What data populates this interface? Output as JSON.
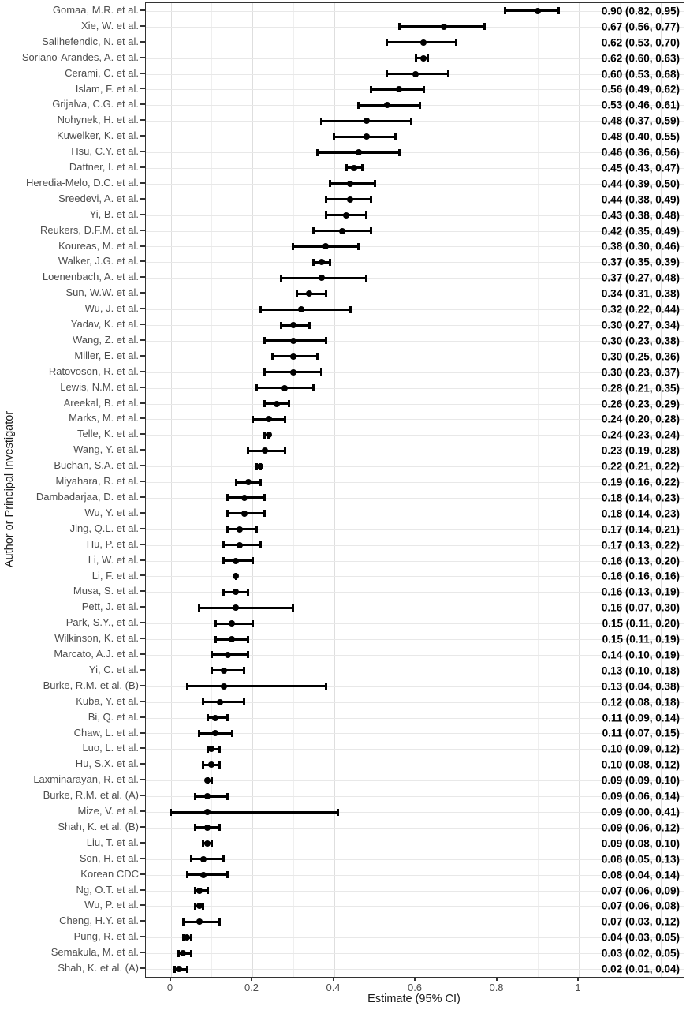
{
  "chart_data": {
    "type": "scatter",
    "subtype": "forest-plot",
    "title": "",
    "xlabel": "Estimate (95% CI)",
    "ylabel": "Author or Principal Investigator",
    "xticks": [
      0,
      0.2,
      0.4,
      0.6,
      0.8,
      1
    ],
    "xtick_labels": [
      "0",
      "0.2",
      "0.4",
      "0.6",
      "0.8",
      "1"
    ],
    "xlim": [
      -0.06,
      1.26
    ],
    "legend": "none",
    "grid": {
      "major_x_step": 0.2,
      "minor_x_step": 0.1,
      "horizontal_per_row": true
    },
    "colors": {
      "point": "#000000",
      "axis_text": "#4d4d4d",
      "estimate_text": "#000000",
      "vgrid_major": "#dedede",
      "vgrid_minor": "#efefef",
      "hgrid": "#e8e8e8",
      "panel_border": "#333333",
      "background": "#ffffff"
    },
    "studies": [
      {
        "label": "Gomaa, M.R. et al.",
        "est": 0.9,
        "lo": 0.82,
        "hi": 0.95,
        "text": "0.90 (0.82, 0.95)"
      },
      {
        "label": "Xie, W. et al.",
        "est": 0.67,
        "lo": 0.56,
        "hi": 0.77,
        "text": "0.67 (0.56, 0.77)"
      },
      {
        "label": "Salihefendic, N. et al.",
        "est": 0.62,
        "lo": 0.53,
        "hi": 0.7,
        "text": "0.62 (0.53, 0.70)"
      },
      {
        "label": "Soriano-Arandes, A. et al.",
        "est": 0.62,
        "lo": 0.6,
        "hi": 0.63,
        "text": "0.62 (0.60, 0.63)"
      },
      {
        "label": "Cerami, C. et al.",
        "est": 0.6,
        "lo": 0.53,
        "hi": 0.68,
        "text": "0.60 (0.53, 0.68)"
      },
      {
        "label": "Islam, F. et al.",
        "est": 0.56,
        "lo": 0.49,
        "hi": 0.62,
        "text": "0.56 (0.49, 0.62)"
      },
      {
        "label": "Grijalva, C.G. et al.",
        "est": 0.53,
        "lo": 0.46,
        "hi": 0.61,
        "text": "0.53 (0.46, 0.61)"
      },
      {
        "label": "Nohynek, H. et al.",
        "est": 0.48,
        "lo": 0.37,
        "hi": 0.59,
        "text": "0.48 (0.37, 0.59)"
      },
      {
        "label": "Kuwelker, K. et al.",
        "est": 0.48,
        "lo": 0.4,
        "hi": 0.55,
        "text": "0.48 (0.40, 0.55)"
      },
      {
        "label": "Hsu, C.Y. et al.",
        "est": 0.46,
        "lo": 0.36,
        "hi": 0.56,
        "text": "0.46 (0.36, 0.56)"
      },
      {
        "label": "Dattner, I. et al.",
        "est": 0.45,
        "lo": 0.43,
        "hi": 0.47,
        "text": "0.45 (0.43, 0.47)"
      },
      {
        "label": "Heredia-Melo, D.C. et al.",
        "est": 0.44,
        "lo": 0.39,
        "hi": 0.5,
        "text": "0.44 (0.39, 0.50)"
      },
      {
        "label": "Sreedevi, A. et al.",
        "est": 0.44,
        "lo": 0.38,
        "hi": 0.49,
        "text": "0.44 (0.38, 0.49)"
      },
      {
        "label": "Yi, B. et al.",
        "est": 0.43,
        "lo": 0.38,
        "hi": 0.48,
        "text": "0.43 (0.38, 0.48)"
      },
      {
        "label": "Reukers, D.F.M. et al.",
        "est": 0.42,
        "lo": 0.35,
        "hi": 0.49,
        "text": "0.42 (0.35, 0.49)"
      },
      {
        "label": "Koureas, M. et al.",
        "est": 0.38,
        "lo": 0.3,
        "hi": 0.46,
        "text": "0.38 (0.30, 0.46)"
      },
      {
        "label": "Walker, J.G. et al.",
        "est": 0.37,
        "lo": 0.35,
        "hi": 0.39,
        "text": "0.37 (0.35, 0.39)"
      },
      {
        "label": "Loenenbach, A. et al.",
        "est": 0.37,
        "lo": 0.27,
        "hi": 0.48,
        "text": "0.37 (0.27, 0.48)"
      },
      {
        "label": "Sun, W.W. et al.",
        "est": 0.34,
        "lo": 0.31,
        "hi": 0.38,
        "text": "0.34 (0.31, 0.38)"
      },
      {
        "label": "Wu, J. et al.",
        "est": 0.32,
        "lo": 0.22,
        "hi": 0.44,
        "text": "0.32 (0.22, 0.44)"
      },
      {
        "label": "Yadav, K. et al.",
        "est": 0.3,
        "lo": 0.27,
        "hi": 0.34,
        "text": "0.30 (0.27, 0.34)"
      },
      {
        "label": "Wang, Z. et al.",
        "est": 0.3,
        "lo": 0.23,
        "hi": 0.38,
        "text": "0.30 (0.23, 0.38)"
      },
      {
        "label": "Miller, E. et al.",
        "est": 0.3,
        "lo": 0.25,
        "hi": 0.36,
        "text": "0.30 (0.25, 0.36)"
      },
      {
        "label": "Ratovoson, R. et al.",
        "est": 0.3,
        "lo": 0.23,
        "hi": 0.37,
        "text": "0.30 (0.23, 0.37)"
      },
      {
        "label": "Lewis, N.M. et al.",
        "est": 0.28,
        "lo": 0.21,
        "hi": 0.35,
        "text": "0.28 (0.21, 0.35)"
      },
      {
        "label": "Areekal, B. et al.",
        "est": 0.26,
        "lo": 0.23,
        "hi": 0.29,
        "text": "0.26 (0.23, 0.29)"
      },
      {
        "label": "Marks, M. et al.",
        "est": 0.24,
        "lo": 0.2,
        "hi": 0.28,
        "text": "0.24 (0.20, 0.28)"
      },
      {
        "label": "Telle, K. et al.",
        "est": 0.24,
        "lo": 0.23,
        "hi": 0.24,
        "text": "0.24 (0.23, 0.24)"
      },
      {
        "label": "Wang, Y. et al.",
        "est": 0.23,
        "lo": 0.19,
        "hi": 0.28,
        "text": "0.23 (0.19, 0.28)"
      },
      {
        "label": "Buchan, S.A. et al.",
        "est": 0.22,
        "lo": 0.21,
        "hi": 0.22,
        "text": "0.22 (0.21, 0.22)"
      },
      {
        "label": "Miyahara, R. et al.",
        "est": 0.19,
        "lo": 0.16,
        "hi": 0.22,
        "text": "0.19 (0.16, 0.22)"
      },
      {
        "label": "Dambadarjaa, D. et al.",
        "est": 0.18,
        "lo": 0.14,
        "hi": 0.23,
        "text": "0.18 (0.14, 0.23)"
      },
      {
        "label": "Wu, Y. et al.",
        "est": 0.18,
        "lo": 0.14,
        "hi": 0.23,
        "text": "0.18 (0.14, 0.23)"
      },
      {
        "label": "Jing, Q.L. et al.",
        "est": 0.17,
        "lo": 0.14,
        "hi": 0.21,
        "text": "0.17 (0.14, 0.21)"
      },
      {
        "label": "Hu, P. et al.",
        "est": 0.17,
        "lo": 0.13,
        "hi": 0.22,
        "text": "0.17 (0.13, 0.22)"
      },
      {
        "label": "Li, W. et al.",
        "est": 0.16,
        "lo": 0.13,
        "hi": 0.2,
        "text": "0.16 (0.13, 0.20)"
      },
      {
        "label": "Li, F. et al.",
        "est": 0.16,
        "lo": 0.16,
        "hi": 0.16,
        "text": "0.16 (0.16, 0.16)"
      },
      {
        "label": "Musa, S. et al.",
        "est": 0.16,
        "lo": 0.13,
        "hi": 0.19,
        "text": "0.16 (0.13, 0.19)"
      },
      {
        "label": "Pett, J. et al.",
        "est": 0.16,
        "lo": 0.07,
        "hi": 0.3,
        "text": "0.16 (0.07, 0.30)"
      },
      {
        "label": "Park, S.Y., et al.",
        "est": 0.15,
        "lo": 0.11,
        "hi": 0.2,
        "text": "0.15 (0.11, 0.20)"
      },
      {
        "label": "Wilkinson, K. et al.",
        "est": 0.15,
        "lo": 0.11,
        "hi": 0.19,
        "text": "0.15 (0.11, 0.19)"
      },
      {
        "label": "Marcato, A.J. et al.",
        "est": 0.14,
        "lo": 0.1,
        "hi": 0.19,
        "text": "0.14 (0.10, 0.19)"
      },
      {
        "label": "Yi, C. et al.",
        "est": 0.13,
        "lo": 0.1,
        "hi": 0.18,
        "text": "0.13 (0.10, 0.18)"
      },
      {
        "label": "Burke, R.M. et al. (B)",
        "est": 0.13,
        "lo": 0.04,
        "hi": 0.38,
        "text": "0.13 (0.04, 0.38)"
      },
      {
        "label": "Kuba, Y. et al.",
        "est": 0.12,
        "lo": 0.08,
        "hi": 0.18,
        "text": "0.12 (0.08, 0.18)"
      },
      {
        "label": "Bi, Q. et al.",
        "est": 0.11,
        "lo": 0.09,
        "hi": 0.14,
        "text": "0.11 (0.09, 0.14)"
      },
      {
        "label": "Chaw, L. et al.",
        "est": 0.11,
        "lo": 0.07,
        "hi": 0.15,
        "text": "0.11 (0.07, 0.15)"
      },
      {
        "label": "Luo, L. et al.",
        "est": 0.1,
        "lo": 0.09,
        "hi": 0.12,
        "text": "0.10 (0.09, 0.12)"
      },
      {
        "label": "Hu, S.X. et al.",
        "est": 0.1,
        "lo": 0.08,
        "hi": 0.12,
        "text": "0.10 (0.08, 0.12)"
      },
      {
        "label": "Laxminarayan, R. et al.",
        "est": 0.09,
        "lo": 0.09,
        "hi": 0.1,
        "text": "0.09 (0.09, 0.10)"
      },
      {
        "label": "Burke, R.M. et al. (A)",
        "est": 0.09,
        "lo": 0.06,
        "hi": 0.14,
        "text": "0.09 (0.06, 0.14)"
      },
      {
        "label": "Mize, V. et al.",
        "est": 0.09,
        "lo": 0.0,
        "hi": 0.41,
        "text": "0.09 (0.00, 0.41)"
      },
      {
        "label": "Shah, K. et al. (B)",
        "est": 0.09,
        "lo": 0.06,
        "hi": 0.12,
        "text": "0.09 (0.06, 0.12)"
      },
      {
        "label": "Liu, T. et al.",
        "est": 0.09,
        "lo": 0.08,
        "hi": 0.1,
        "text": "0.09 (0.08, 0.10)"
      },
      {
        "label": "Son, H. et al.",
        "est": 0.08,
        "lo": 0.05,
        "hi": 0.13,
        "text": "0.08 (0.05, 0.13)"
      },
      {
        "label": "Korean CDC",
        "est": 0.08,
        "lo": 0.04,
        "hi": 0.14,
        "text": "0.08 (0.04, 0.14)"
      },
      {
        "label": "Ng, O.T. et al.",
        "est": 0.07,
        "lo": 0.06,
        "hi": 0.09,
        "text": "0.07 (0.06, 0.09)"
      },
      {
        "label": "Wu, P. et al.",
        "est": 0.07,
        "lo": 0.06,
        "hi": 0.08,
        "text": "0.07 (0.06, 0.08)"
      },
      {
        "label": "Cheng, H.Y. et al.",
        "est": 0.07,
        "lo": 0.03,
        "hi": 0.12,
        "text": "0.07 (0.03, 0.12)"
      },
      {
        "label": "Pung, R. et al.",
        "est": 0.04,
        "lo": 0.03,
        "hi": 0.05,
        "text": "0.04 (0.03, 0.05)"
      },
      {
        "label": "Semakula, M. et al.",
        "est": 0.03,
        "lo": 0.02,
        "hi": 0.05,
        "text": "0.03 (0.02, 0.05)"
      },
      {
        "label": "Shah, K. et al. (A)",
        "est": 0.02,
        "lo": 0.01,
        "hi": 0.04,
        "text": "0.02 (0.01, 0.04)"
      }
    ]
  }
}
